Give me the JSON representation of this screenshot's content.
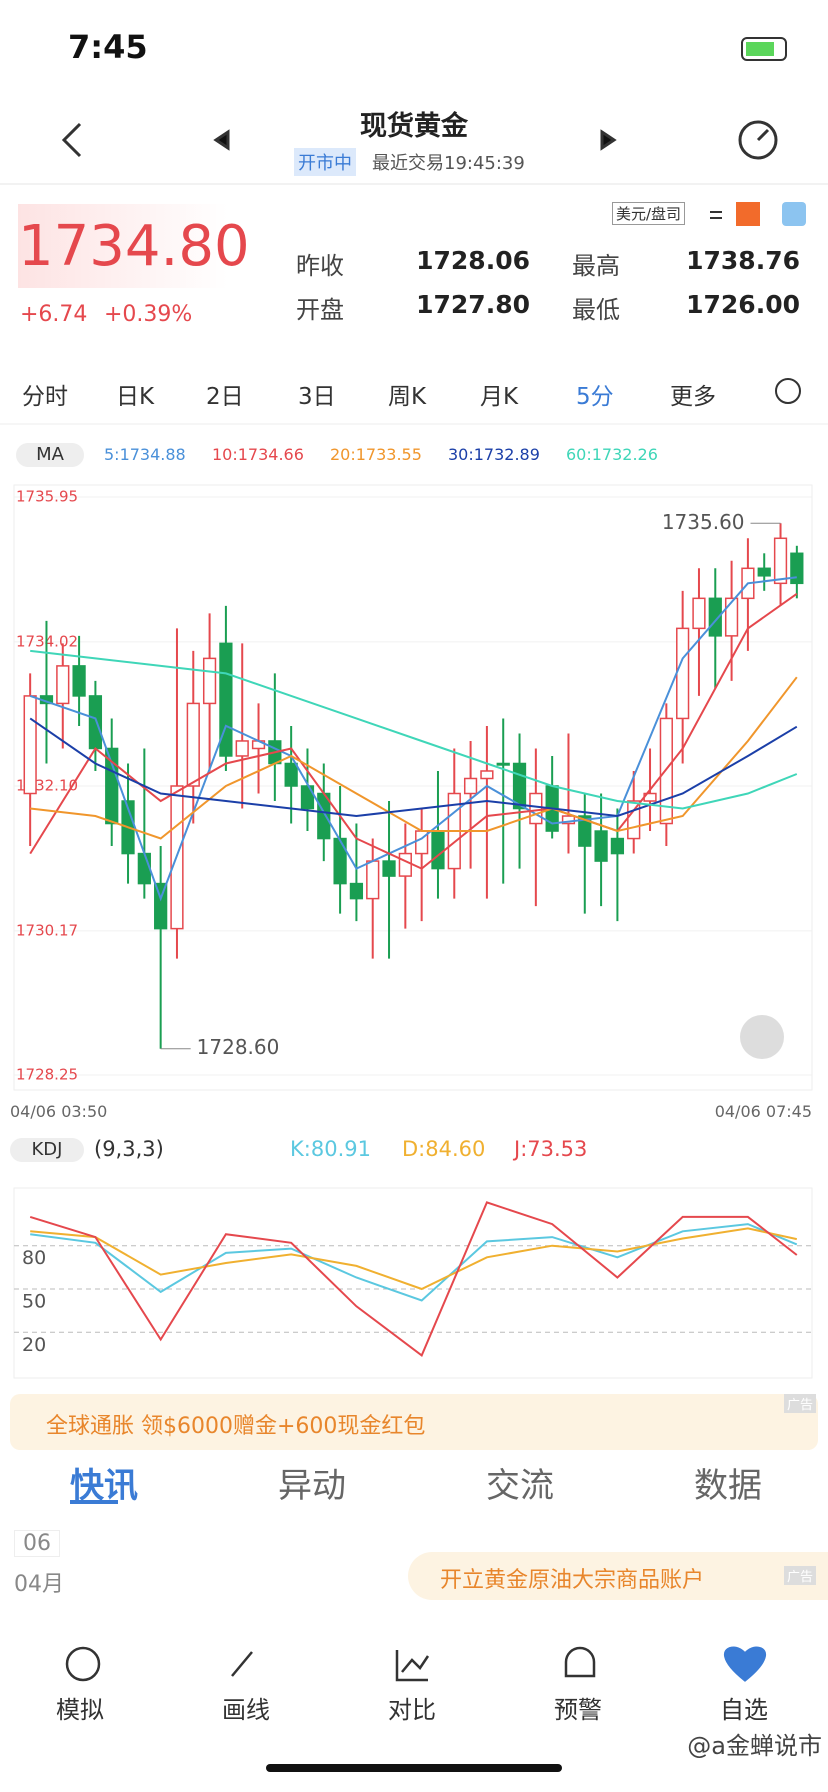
{
  "status_bar": {
    "time": "7:45"
  },
  "header": {
    "title": "现货黄金",
    "status": "开市中",
    "last_trade": "最近交易19:45:39"
  },
  "quote": {
    "price": "1734.80",
    "change": "+6.74",
    "change_pct": "+0.39%",
    "unit": "美元/盘司",
    "stats": [
      {
        "label": "昨收",
        "value": "1728.06"
      },
      {
        "label": "最高",
        "value": "1738.76"
      },
      {
        "label": "开盘",
        "value": "1727.80"
      },
      {
        "label": "最低",
        "value": "1726.00"
      }
    ]
  },
  "tabs": [
    "分时",
    "日K",
    "2日",
    "3日",
    "周K",
    "月K",
    "5分",
    "更多"
  ],
  "active_tab": 6,
  "chart_data": [
    {
      "type": "candlestick",
      "indicator": "MA",
      "up_color": "#e5484d",
      "down_color": "#1a9e52",
      "ylim": [
        1728.25,
        1735.95
      ],
      "yticks": [
        1735.95,
        1734.02,
        {
          "value": 1732.1,
          "label": "1732.10"
        },
        1730.17,
        1728.25
      ],
      "x_labels": [
        "04/06 03:50",
        "04/06 07:45"
      ],
      "annotations": [
        {
          "value": 1735.6,
          "label": "1735.60",
          "index": 46
        },
        {
          "value": 1728.6,
          "label": "1728.60",
          "index": 8
        }
      ],
      "ohlc": [
        [
          1732.0,
          1733.6,
          1731.3,
          1733.3
        ],
        [
          1733.3,
          1734.3,
          1732.4,
          1733.2
        ],
        [
          1733.2,
          1734.0,
          1732.6,
          1733.7
        ],
        [
          1733.7,
          1734.1,
          1732.9,
          1733.3
        ],
        [
          1733.3,
          1733.5,
          1732.3,
          1732.6
        ],
        [
          1732.6,
          1733.0,
          1731.3,
          1731.6
        ],
        [
          1731.9,
          1732.4,
          1730.8,
          1731.2
        ],
        [
          1731.2,
          1732.6,
          1730.6,
          1730.8
        ],
        [
          1730.8,
          1731.3,
          1728.6,
          1730.2
        ],
        [
          1730.2,
          1734.2,
          1729.8,
          1732.1
        ],
        [
          1732.1,
          1733.9,
          1731.6,
          1733.2
        ],
        [
          1733.2,
          1734.4,
          1732.3,
          1733.8
        ],
        [
          1734.0,
          1734.5,
          1732.3,
          1732.5
        ],
        [
          1732.5,
          1734.0,
          1731.8,
          1732.7
        ],
        [
          1732.6,
          1733.2,
          1732.0,
          1732.7
        ],
        [
          1732.7,
          1733.6,
          1731.9,
          1732.4
        ],
        [
          1732.4,
          1732.9,
          1731.6,
          1732.1
        ],
        [
          1732.1,
          1732.6,
          1731.5,
          1731.8
        ],
        [
          1732.0,
          1732.4,
          1731.1,
          1731.4
        ],
        [
          1731.4,
          1732.1,
          1730.4,
          1730.8
        ],
        [
          1730.8,
          1731.6,
          1730.3,
          1730.6
        ],
        [
          1730.6,
          1731.4,
          1729.8,
          1731.1
        ],
        [
          1731.1,
          1731.9,
          1729.8,
          1730.9
        ],
        [
          1730.9,
          1731.6,
          1730.2,
          1731.2
        ],
        [
          1731.2,
          1731.8,
          1730.3,
          1731.5
        ],
        [
          1731.5,
          1732.3,
          1730.6,
          1731.0
        ],
        [
          1731.0,
          1732.6,
          1730.6,
          1732.0
        ],
        [
          1732.0,
          1732.7,
          1731.0,
          1732.2
        ],
        [
          1732.2,
          1732.9,
          1730.6,
          1732.3
        ],
        [
          1732.4,
          1733.0,
          1730.8,
          1732.4
        ],
        [
          1732.4,
          1732.8,
          1731.0,
          1731.8
        ],
        [
          1731.6,
          1732.6,
          1730.5,
          1732.0
        ],
        [
          1732.1,
          1732.5,
          1731.4,
          1731.5
        ],
        [
          1731.6,
          1732.8,
          1731.2,
          1731.7
        ],
        [
          1731.7,
          1732.0,
          1730.4,
          1731.3
        ],
        [
          1731.5,
          1732.0,
          1730.5,
          1731.1
        ],
        [
          1731.4,
          1731.8,
          1730.3,
          1731.2
        ],
        [
          1731.4,
          1732.3,
          1731.2,
          1731.9
        ],
        [
          1731.9,
          1732.6,
          1731.5,
          1732.0
        ],
        [
          1731.6,
          1733.2,
          1731.3,
          1733.0
        ],
        [
          1733.0,
          1734.7,
          1732.4,
          1734.2
        ],
        [
          1734.2,
          1735.0,
          1733.3,
          1734.6
        ],
        [
          1734.6,
          1735.0,
          1733.4,
          1734.1
        ],
        [
          1734.1,
          1735.1,
          1733.5,
          1734.6
        ],
        [
          1734.6,
          1735.4,
          1733.9,
          1735.0
        ],
        [
          1735.0,
          1735.2,
          1734.7,
          1734.9
        ],
        [
          1734.8,
          1735.6,
          1734.5,
          1735.4
        ],
        [
          1735.2,
          1735.3,
          1734.6,
          1734.8
        ]
      ],
      "x": [
        0,
        4,
        8,
        12,
        16,
        20,
        24,
        28,
        32,
        36,
        40,
        44,
        47
      ],
      "series": [
        {
          "name": "5:1734.88",
          "color": "#4a90d9",
          "values": [
            1733.3,
            1733.0,
            1730.6,
            1732.9,
            1732.5,
            1731.0,
            1731.4,
            1732.1,
            1731.6,
            1731.7,
            1733.8,
            1734.8,
            1734.88
          ]
        },
        {
          "name": "10:1734.66",
          "color": "#e5484d",
          "values": [
            1731.2,
            1732.6,
            1731.9,
            1732.4,
            1732.6,
            1731.4,
            1731.0,
            1731.7,
            1731.8,
            1731.5,
            1732.6,
            1734.2,
            1734.66
          ]
        },
        {
          "name": "20:1733.55",
          "color": "#f0962c",
          "values": [
            1731.8,
            1731.7,
            1731.4,
            1732.1,
            1732.5,
            1732.0,
            1731.5,
            1731.5,
            1731.8,
            1731.5,
            1731.7,
            1732.7,
            1733.55
          ]
        },
        {
          "name": "30:1732.89",
          "color": "#1b3fa8",
          "values": [
            1733.0,
            1732.4,
            1732.0,
            1731.9,
            1731.8,
            1731.7,
            1731.8,
            1731.9,
            1731.8,
            1731.7,
            1732.0,
            1732.5,
            1732.89
          ]
        },
        {
          "name": "60:1732.26",
          "color": "#3fd6b8",
          "values": [
            1733.9,
            1733.8,
            1733.7,
            1733.6,
            1733.3,
            1733.0,
            1732.7,
            1732.4,
            1732.1,
            1731.9,
            1731.8,
            1732.0,
            1732.26
          ]
        }
      ]
    },
    {
      "type": "line",
      "indicator": "KDJ",
      "params": "(9,3,3)",
      "ylim": [
        -11,
        120
      ],
      "yticks": [
        80,
        50,
        20
      ],
      "grid": true,
      "x": [
        0,
        4,
        8,
        12,
        16,
        20,
        24,
        28,
        32,
        36,
        40,
        44,
        47
      ],
      "series": [
        {
          "name": "K:80.91",
          "color": "#5bc8e0",
          "values": [
            88,
            82,
            48,
            75,
            78,
            58,
            42,
            83,
            86,
            72,
            90,
            95,
            80.91
          ]
        },
        {
          "name": "D:84.60",
          "color": "#f0b030",
          "values": [
            90,
            86,
            60,
            68,
            74,
            66,
            50,
            72,
            80,
            76,
            85,
            92,
            84.6
          ]
        },
        {
          "name": "J:73.53",
          "color": "#e5484d",
          "values": [
            100,
            86,
            15,
            88,
            82,
            38,
            4,
            110,
            95,
            58,
            100,
            100,
            73.53
          ]
        }
      ]
    }
  ],
  "ads": [
    {
      "text": "全球通胀 领$6000赠金+600现金红包",
      "tag": "广告"
    },
    {
      "text": "开立黄金原油大宗商品账户",
      "tag": "广告"
    }
  ],
  "news_tabs": [
    "快讯",
    "异动",
    "交流",
    "数据"
  ],
  "news_date": {
    "day": "06",
    "month": "04月"
  },
  "bottom_nav": [
    "模拟",
    "画线",
    "对比",
    "预警",
    "自选"
  ],
  "watermark": "@a金蝉说市"
}
